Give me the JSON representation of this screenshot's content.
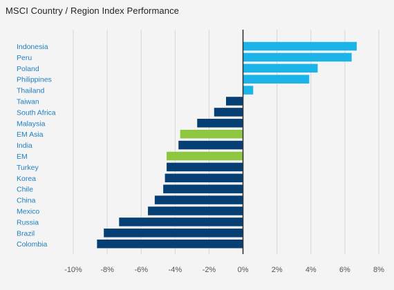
{
  "title": "MSCI Country / Region Index Performance",
  "colors": {
    "positive": "#1ab4e8",
    "negative": "#053f73",
    "highlight": "#8dc63f",
    "grid": "#d6d6d6",
    "zero_line": "#333333",
    "label": "#1f7fbf"
  },
  "chart_data": {
    "type": "bar",
    "orientation": "horizontal",
    "title": "MSCI Country / Region Index Performance",
    "xlabel": "",
    "ylabel": "",
    "xlim": [
      -10,
      8
    ],
    "grid": "vertical",
    "legend": "none",
    "x_ticks": [
      -10,
      -8,
      -6,
      -4,
      -2,
      0,
      2,
      4,
      6,
      8
    ],
    "x_tick_labels": [
      "-10%",
      "-8%",
      "-6%",
      "-4%",
      "-2%",
      "0%",
      "2%",
      "4%",
      "6%",
      "8%"
    ],
    "categories": [
      "Indonesia",
      "Peru",
      "Poland",
      "Philippines",
      "Thailand",
      "Taiwan",
      "South Africa",
      "Malaysia",
      "EM Asia",
      "India",
      "EM",
      "Turkey",
      "Korea",
      "Chile",
      "China",
      "Mexico",
      "Russia",
      "Brazil",
      "Colombia"
    ],
    "values": [
      6.7,
      6.4,
      4.4,
      3.9,
      0.6,
      -1.0,
      -1.7,
      -2.7,
      -3.7,
      -3.8,
      -4.5,
      -4.5,
      -4.6,
      -4.7,
      -5.2,
      -5.6,
      -7.3,
      -8.2,
      -8.6
    ],
    "highlighted": [
      "EM Asia",
      "EM"
    ]
  }
}
